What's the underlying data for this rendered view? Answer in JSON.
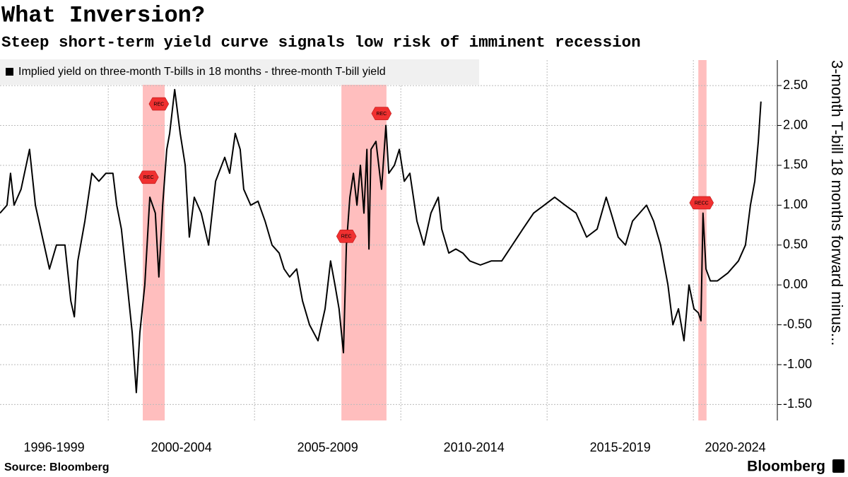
{
  "chart_data": {
    "type": "line",
    "title": "What Inversion?",
    "subtitle": "Steep short-term yield curve signals low risk of imminent recession",
    "y_axis_label": "3-month T-bill 18 months forward minus...",
    "source": "Source: Bloomberg",
    "brand": "Bloomberg",
    "x_period_labels": [
      "1996-1999",
      "2000-2004",
      "2005-2009",
      "2010-2014",
      "2015-2019",
      "2020-2024"
    ],
    "xlim": [
      1996.3,
      2022.87
    ],
    "xticks": [
      2000,
      2005,
      2010,
      2015,
      2020
    ],
    "ylim": [
      -1.7,
      2.82
    ],
    "yticks": [
      {
        "value": -1.5,
        "label": "-1.50"
      },
      {
        "value": -1,
        "label": "-1.00"
      },
      {
        "value": -0.5,
        "label": "-0.50"
      },
      {
        "value": 0,
        "label": "0.00"
      },
      {
        "value": 0.5,
        "label": "0.50"
      },
      {
        "value": 1,
        "label": "1.00"
      },
      {
        "value": 1.5,
        "label": "1.50"
      },
      {
        "value": 2,
        "label": "2.00"
      },
      {
        "value": 2.5,
        "label": "2.50"
      }
    ],
    "grid": true,
    "legend": "top-left",
    "recession_color": "#ffb3b3",
    "recessions": [
      {
        "start": 2001.18,
        "end": 2001.93
      },
      {
        "start": 2007.97,
        "end": 2009.51
      },
      {
        "start": 2020.17,
        "end": 2020.45
      }
    ],
    "markers": [
      {
        "label": "REC",
        "x": 2001.73,
        "y": 2.27
      },
      {
        "label": "REC",
        "x": 2001.38,
        "y": 1.35
      },
      {
        "label": "REC",
        "x": 2008.14,
        "y": 0.61
      },
      {
        "label": "REC",
        "x": 2009.34,
        "y": 2.15
      },
      {
        "label": "RECC",
        "x": 2020.28,
        "y": 1.03
      }
    ],
    "x": [
      1996.3,
      1996.54,
      1996.66,
      1996.78,
      1997.02,
      1997.31,
      1997.51,
      1997.75,
      1997.99,
      1998.23,
      1998.52,
      1998.72,
      1998.84,
      1998.96,
      1999.2,
      1999.44,
      1999.68,
      1999.92,
      2000.16,
      2000.29,
      2000.45,
      2000.65,
      2000.82,
      2000.96,
      2001.08,
      2001.25,
      2001.42,
      2001.61,
      2001.73,
      2001.86,
      2002.0,
      2002.1,
      2002.27,
      2002.46,
      2002.63,
      2002.77,
      2002.94,
      2003.18,
      2003.43,
      2003.67,
      2003.98,
      2004.15,
      2004.34,
      2004.51,
      2004.63,
      2004.87,
      2005.12,
      2005.36,
      2005.6,
      2005.84,
      2006.01,
      2006.2,
      2006.44,
      2006.64,
      2006.88,
      2007.17,
      2007.41,
      2007.6,
      2007.75,
      2007.89,
      2008.04,
      2008.14,
      2008.26,
      2008.38,
      2008.5,
      2008.62,
      2008.74,
      2008.84,
      2008.91,
      2008.98,
      2009.15,
      2009.34,
      2009.49,
      2009.59,
      2009.78,
      2009.95,
      2010.12,
      2010.31,
      2010.55,
      2010.79,
      2011.03,
      2011.28,
      2011.4,
      2011.64,
      2011.88,
      2012.12,
      2012.36,
      2012.72,
      2013.09,
      2013.45,
      2013.81,
      2014.17,
      2014.54,
      2014.9,
      2015.26,
      2015.62,
      2015.99,
      2016.35,
      2016.71,
      2017.02,
      2017.19,
      2017.43,
      2017.68,
      2017.92,
      2018.16,
      2018.4,
      2018.64,
      2018.88,
      2019.13,
      2019.3,
      2019.49,
      2019.68,
      2019.85,
      2020.02,
      2020.17,
      2020.26,
      2020.33,
      2020.43,
      2020.58,
      2020.82,
      2021.18,
      2021.54,
      2021.78,
      2021.95,
      2022.1,
      2022.22,
      2022.31
    ],
    "series": [
      {
        "name": "Implied yield on three-month T-bills in 18 months - three-month T-bill yield",
        "color": "#000000",
        "values": [
          0.9,
          1.0,
          1.4,
          1.0,
          1.2,
          1.7,
          1.0,
          0.6,
          0.2,
          0.5,
          0.5,
          -0.2,
          -0.4,
          0.3,
          0.8,
          1.4,
          1.3,
          1.4,
          1.4,
          1.0,
          0.7,
          0.0,
          -0.6,
          -1.35,
          -0.6,
          0.0,
          1.1,
          0.9,
          0.1,
          1.0,
          1.7,
          1.9,
          2.45,
          1.9,
          1.5,
          0.6,
          1.1,
          0.9,
          0.5,
          1.3,
          1.6,
          1.4,
          1.9,
          1.7,
          1.2,
          1.0,
          1.05,
          0.8,
          0.5,
          0.4,
          0.2,
          0.1,
          0.2,
          -0.2,
          -0.5,
          -0.7,
          -0.3,
          0.3,
          0.0,
          -0.3,
          -0.85,
          0.5,
          1.1,
          1.4,
          1.0,
          1.5,
          0.9,
          1.7,
          0.45,
          1.7,
          1.8,
          1.2,
          2.0,
          1.4,
          1.5,
          1.7,
          1.3,
          1.4,
          0.8,
          0.5,
          0.9,
          1.1,
          0.7,
          0.4,
          0.45,
          0.4,
          0.3,
          0.25,
          0.3,
          0.3,
          0.5,
          0.7,
          0.9,
          1.0,
          1.1,
          1.0,
          0.9,
          0.6,
          0.7,
          1.1,
          0.9,
          0.6,
          0.5,
          0.8,
          0.9,
          1.0,
          0.8,
          0.5,
          0.0,
          -0.5,
          -0.3,
          -0.7,
          0.0,
          -0.3,
          -0.35,
          -0.45,
          0.9,
          0.2,
          0.05,
          0.05,
          0.15,
          0.3,
          0.5,
          1.0,
          1.3,
          1.8,
          2.3
        ]
      }
    ]
  }
}
